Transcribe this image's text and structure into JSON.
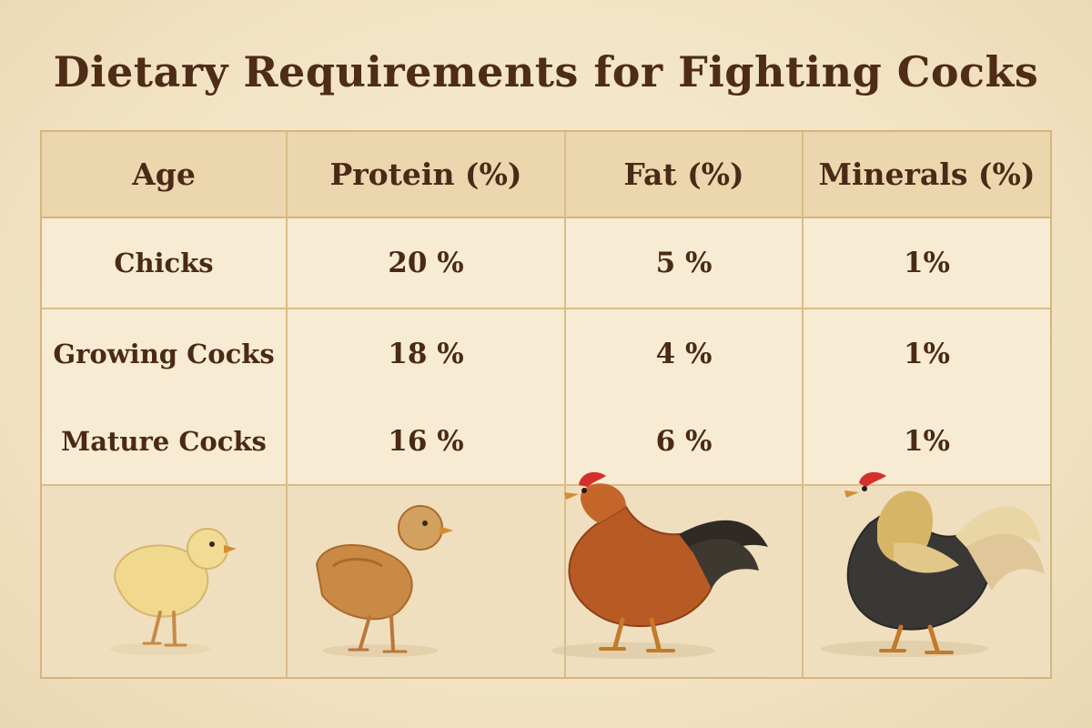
{
  "title": "Dietary Requirements for Fighting Cocks",
  "table": {
    "headers": [
      "Age",
      "Protein (%)",
      "Fat (%)",
      "Minerals (%)"
    ],
    "rows": [
      {
        "age": "Chicks",
        "protein": "20 %",
        "fat": "5 %",
        "minerals": "1%"
      },
      {
        "age": "Growing Cocks",
        "protein": "18 %",
        "fat": "4 %",
        "minerals": "1%"
      },
      {
        "age": "Mature Cocks",
        "protein": "16 %",
        "fat": "6 %",
        "minerals": "1%"
      }
    ]
  },
  "illustrations": [
    {
      "name": "chick-illustration",
      "color": "#f0d98f"
    },
    {
      "name": "growing-cock-illustration",
      "color": "#c98a45"
    },
    {
      "name": "mature-cock-red-illustration",
      "color": "#b85a24"
    },
    {
      "name": "mature-cock-gamefowl-illustration",
      "color": "#d6b566"
    }
  ]
}
